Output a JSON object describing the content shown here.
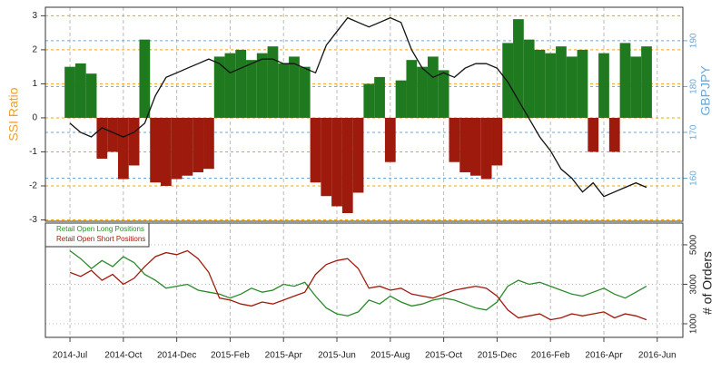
{
  "chart_data": [
    {
      "type": "bar",
      "ylabel": "SSI Ratio",
      "y2label": "GBPJPY",
      "ylim": [
        -3.04,
        3.25
      ],
      "yticks": [
        -3,
        -2,
        -1,
        0,
        1,
        2,
        3
      ],
      "y2lim": [
        150.6,
        197.3
      ],
      "y2ticks": [
        160,
        170,
        180,
        190
      ],
      "grid": true,
      "series": [
        {
          "type": "bar",
          "color": {
            "positive": "#1f7a1f",
            "negative": "#9e1a0c"
          },
          "values": [
            1.5,
            1.6,
            1.3,
            -1.2,
            -1.0,
            -1.8,
            -1.4,
            2.3,
            -1.9,
            -2.0,
            -1.8,
            -1.7,
            -1.6,
            -1.5,
            1.8,
            1.9,
            2.0,
            1.7,
            1.9,
            2.1,
            1.6,
            1.8,
            1.5,
            -1.9,
            -2.3,
            -2.6,
            -2.8,
            -2.2,
            1.0,
            1.2,
            -1.3,
            1.1,
            1.7,
            1.5,
            1.8,
            1.4,
            -1.3,
            -1.6,
            -1.7,
            -1.8,
            -1.4,
            2.2,
            2.9,
            2.3,
            2.0,
            1.9,
            2.1,
            1.8,
            2.0,
            -1.0,
            1.9,
            -1.0,
            2.2,
            1.8,
            2.1
          ]
        },
        {
          "type": "line",
          "axis": "y2",
          "color": "#111111",
          "values": [
            172,
            170,
            169,
            171,
            170,
            169,
            170,
            172,
            178,
            182,
            183,
            184,
            185,
            186,
            185,
            183,
            184,
            185,
            186,
            186,
            185,
            185,
            184,
            183,
            189,
            192,
            195,
            194,
            193,
            194,
            195,
            194,
            188,
            184,
            182,
            183,
            182,
            184,
            185,
            185,
            184,
            181,
            177,
            173,
            169,
            166,
            162,
            160,
            157,
            159,
            156,
            157,
            158,
            159,
            158
          ]
        }
      ]
    },
    {
      "type": "line",
      "ylabel": "# of Orders",
      "x": [
        0,
        0.2,
        0.4,
        0.6,
        0.8,
        1,
        1.2,
        1.4,
        1.6,
        1.8,
        2,
        2.2,
        2.4,
        2.6,
        2.8,
        3,
        3.2,
        3.4,
        3.6,
        3.8,
        4,
        4.2,
        4.4,
        4.6,
        4.8,
        5,
        5.2,
        5.4,
        5.6,
        5.8,
        6,
        6.2,
        6.4,
        6.6,
        6.8,
        7,
        7.2,
        7.4,
        7.6,
        7.8,
        8,
        8.2,
        8.4,
        8.6,
        8.8,
        9,
        9.2,
        9.4,
        9.6,
        9.8,
        10,
        10.2,
        10.4,
        10.6,
        10.8
      ],
      "xlim": [
        -0.46,
        11.48
      ],
      "xticks": [
        {
          "value": 0,
          "label": "2014-Jul"
        },
        {
          "value": 1,
          "label": "2014-Oct"
        },
        {
          "value": 2,
          "label": "2014-Dec"
        },
        {
          "value": 3,
          "label": "2015-Feb"
        },
        {
          "value": 4,
          "label": "2015-Apr"
        },
        {
          "value": 5,
          "label": "2015-Jun"
        },
        {
          "value": 6,
          "label": "2015-Aug"
        },
        {
          "value": 7,
          "label": "2015-Oct"
        },
        {
          "value": 8,
          "label": "2015-Dec"
        },
        {
          "value": 9,
          "label": "2016-Feb"
        },
        {
          "value": 10,
          "label": "2016-Apr"
        },
        {
          "value": 11,
          "label": "2016-Jun"
        }
      ],
      "ylim": [
        310,
        6100
      ],
      "yticks": [
        1000,
        3000,
        5000
      ],
      "legend": "top-left",
      "grid": true,
      "series": [
        {
          "name": "Retail Open Long Positions",
          "color": "#2a8a2a",
          "values": [
            4700,
            4300,
            3800,
            4200,
            3900,
            4400,
            4100,
            3500,
            3200,
            2800,
            2900,
            3000,
            2700,
            2600,
            2500,
            2300,
            2500,
            2800,
            2600,
            2700,
            3000,
            2900,
            3100,
            2400,
            1800,
            1500,
            1400,
            1600,
            2200,
            2000,
            2400,
            2100,
            1900,
            2000,
            2200,
            2300,
            2200,
            2000,
            1800,
            1700,
            2100,
            2900,
            3200,
            3000,
            3100,
            2900,
            2700,
            2500,
            2400,
            2600,
            2800,
            2500,
            2300,
            2600,
            2900
          ]
        },
        {
          "name": "Retail Open Short Positions",
          "color": "#a01a0c",
          "values": [
            3600,
            3400,
            3700,
            3200,
            3500,
            3000,
            3300,
            3900,
            4400,
            4600,
            4500,
            4700,
            4300,
            3600,
            2300,
            2200,
            2000,
            1900,
            2100,
            2000,
            2200,
            2400,
            2600,
            3500,
            4000,
            4200,
            4300,
            3800,
            2800,
            2900,
            2700,
            2800,
            2500,
            2400,
            2300,
            2500,
            2700,
            2800,
            2900,
            2800,
            2400,
            1700,
            1300,
            1400,
            1500,
            1200,
            1300,
            1500,
            1400,
            1500,
            1600,
            1300,
            1500,
            1400,
            1200
          ]
        }
      ]
    }
  ]
}
